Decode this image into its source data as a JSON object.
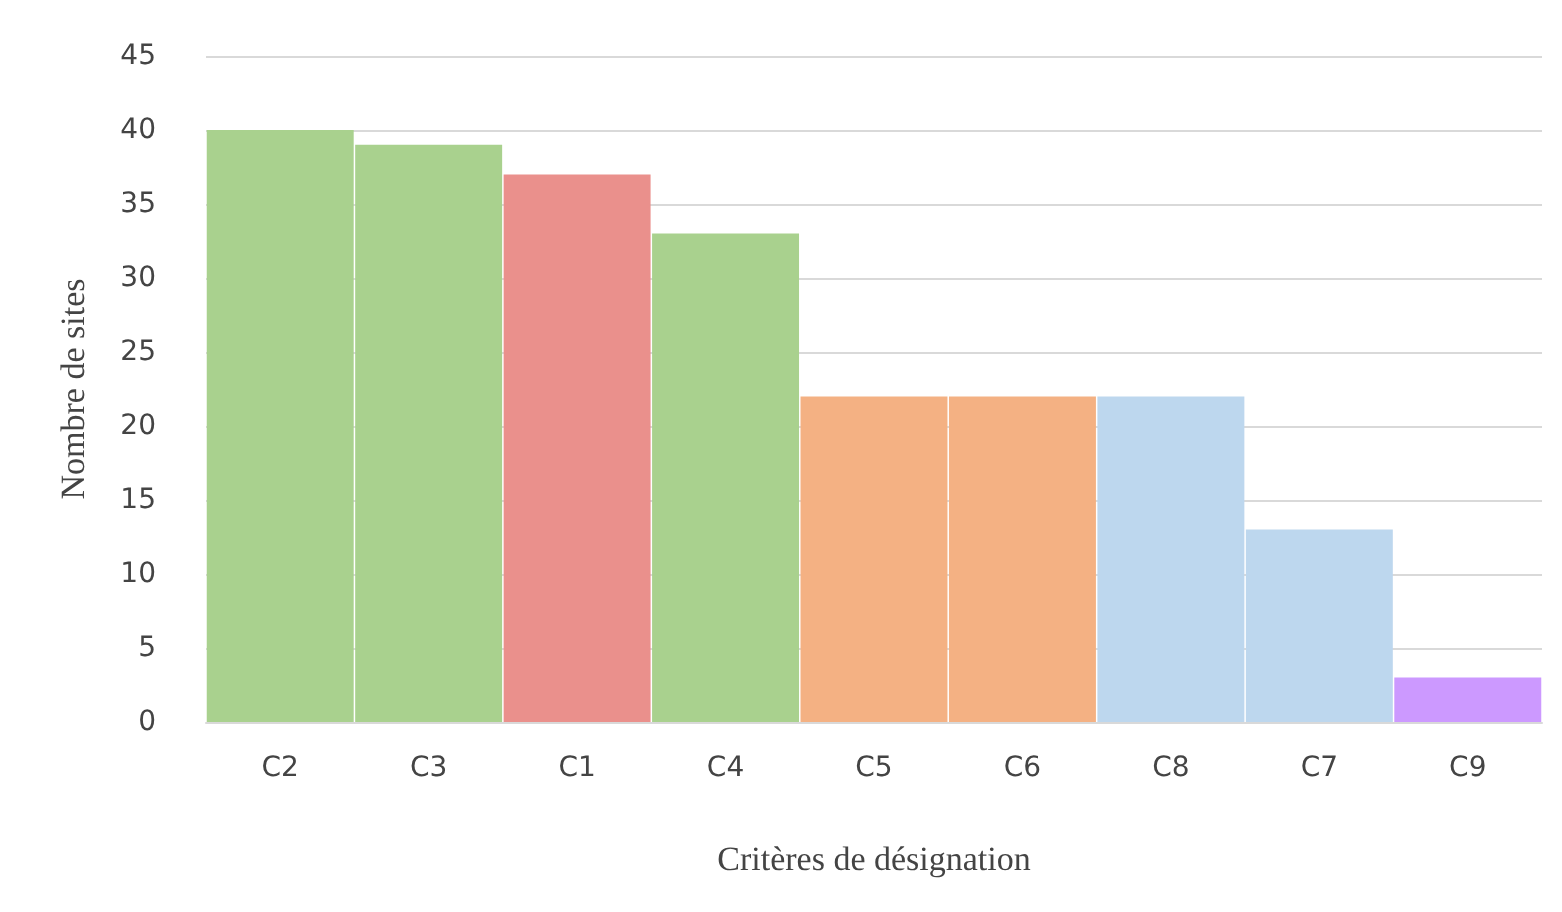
{
  "chart_data": {
    "type": "bar",
    "xlabel": "Critères de désignation",
    "ylabel": "Nombre de sites",
    "categories": [
      "C2",
      "C3",
      "C1",
      "C4",
      "C5",
      "C6",
      "C8",
      "C7",
      "C9"
    ],
    "values": [
      40,
      39,
      37,
      33,
      22,
      22,
      22,
      13,
      3
    ],
    "colors": [
      "#a9d18e",
      "#a9d18e",
      "#ea908c",
      "#a9d18e",
      "#f4b183",
      "#f4b183",
      "#bdd7ee",
      "#bdd7ee",
      "#cc99ff"
    ],
    "ylim": [
      0,
      45
    ],
    "yticks": [
      0,
      5,
      10,
      15,
      20,
      25,
      30,
      35,
      40,
      45
    ],
    "grid": "y"
  }
}
